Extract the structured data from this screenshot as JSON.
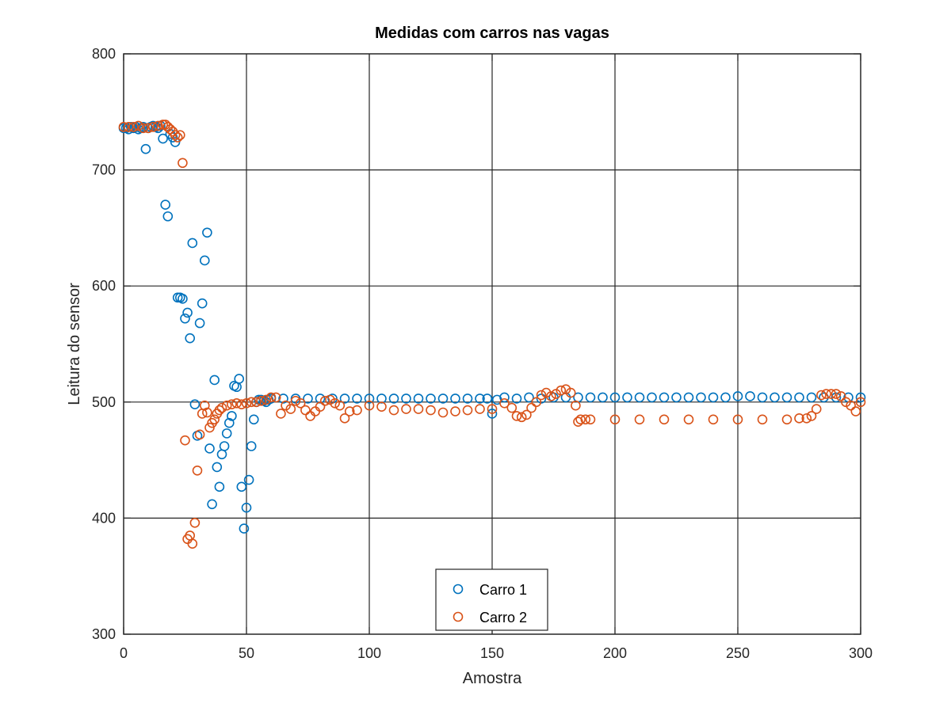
{
  "chart_data": {
    "type": "scatter",
    "title": "Medidas com carros nas vagas",
    "xlabel": "Amostra",
    "ylabel": "Leitura do sensor",
    "xlim": [
      0,
      300
    ],
    "ylim": [
      300,
      800
    ],
    "xticks": [
      0,
      50,
      100,
      150,
      200,
      250,
      300
    ],
    "yticks": [
      300,
      400,
      500,
      600,
      700,
      800
    ],
    "grid": true,
    "legend_position": "bottom-center",
    "marker": "open-circle",
    "series": [
      {
        "name": "Carro 1",
        "color": "#0072bd",
        "x": [
          0,
          1,
          2,
          3,
          4,
          5,
          6,
          7,
          8,
          9,
          10,
          11,
          12,
          13,
          14,
          15,
          16,
          17,
          18,
          19,
          20,
          21,
          22,
          23,
          24,
          25,
          26,
          27,
          28,
          29,
          30,
          31,
          32,
          33,
          34,
          35,
          36,
          37,
          38,
          39,
          40,
          41,
          42,
          43,
          44,
          45,
          46,
          47,
          48,
          49,
          50,
          51,
          52,
          53,
          54,
          55,
          56,
          57,
          58,
          59,
          60,
          65,
          70,
          75,
          80,
          85,
          90,
          95,
          100,
          105,
          110,
          115,
          120,
          125,
          130,
          135,
          140,
          145,
          148,
          150,
          152,
          155,
          160,
          165,
          170,
          175,
          180,
          185,
          190,
          195,
          200,
          205,
          210,
          215,
          220,
          225,
          230,
          235,
          240,
          245,
          250,
          255,
          260,
          265,
          270,
          275,
          280,
          285,
          290,
          295,
          300
        ],
        "y": [
          736,
          736,
          735,
          737,
          736,
          737,
          735,
          736,
          737,
          718,
          736,
          737,
          738,
          737,
          736,
          738,
          727,
          670,
          660,
          731,
          728,
          724,
          590,
          590,
          589,
          572,
          577,
          555,
          637,
          498,
          471,
          568,
          585,
          622,
          646,
          460,
          412,
          519,
          444,
          427,
          455,
          462,
          473,
          482,
          488,
          514,
          513,
          520,
          427,
          391,
          409,
          433,
          462,
          485,
          500,
          502,
          502,
          501,
          500,
          502,
          503,
          503,
          503,
          503,
          503,
          503,
          503,
          503,
          503,
          503,
          503,
          503,
          503,
          503,
          503,
          503,
          503,
          503,
          503,
          490,
          502,
          504,
          503,
          504,
          503,
          504,
          504,
          504,
          504,
          504,
          504,
          504,
          504,
          504,
          504,
          504,
          504,
          504,
          504,
          504,
          505,
          505,
          504,
          504,
          504,
          504,
          504,
          504,
          504,
          504,
          504
        ]
      },
      {
        "name": "Carro 2",
        "color": "#d95319",
        "x": [
          0,
          2,
          4,
          6,
          8,
          10,
          12,
          14,
          16,
          17,
          18,
          19,
          20,
          21,
          22,
          23,
          24,
          25,
          26,
          27,
          28,
          29,
          30,
          31,
          32,
          33,
          34,
          35,
          36,
          37,
          38,
          39,
          40,
          42,
          44,
          46,
          48,
          50,
          52,
          54,
          56,
          58,
          60,
          62,
          64,
          66,
          68,
          70,
          72,
          74,
          76,
          78,
          80,
          82,
          84,
          86,
          88,
          90,
          92,
          95,
          100,
          105,
          110,
          115,
          120,
          125,
          130,
          135,
          140,
          145,
          150,
          155,
          158,
          160,
          162,
          164,
          166,
          168,
          170,
          172,
          174,
          176,
          178,
          180,
          182,
          184,
          185,
          186,
          188,
          190,
          200,
          210,
          220,
          230,
          240,
          250,
          260,
          270,
          275,
          278,
          280,
          282,
          284,
          286,
          288,
          290,
          292,
          294,
          296,
          298,
          300
        ],
        "y": [
          737,
          737,
          737,
          738,
          736,
          736,
          737,
          738,
          739,
          739,
          737,
          735,
          733,
          730,
          728,
          730,
          706,
          467,
          382,
          385,
          378,
          396,
          441,
          472,
          490,
          497,
          491,
          478,
          482,
          485,
          490,
          493,
          495,
          497,
          498,
          499,
          498,
          499,
          500,
          500,
          501,
          502,
          504,
          504,
          490,
          497,
          494,
          501,
          499,
          493,
          488,
          492,
          496,
          501,
          502,
          499,
          497,
          486,
          492,
          493,
          497,
          496,
          493,
          494,
          494,
          493,
          491,
          492,
          493,
          494,
          494,
          499,
          495,
          488,
          487,
          489,
          495,
          500,
          506,
          508,
          505,
          507,
          510,
          511,
          508,
          497,
          483,
          485,
          485,
          485,
          485,
          485,
          485,
          485,
          485,
          485,
          485,
          485,
          486,
          486,
          488,
          494,
          506,
          507,
          507,
          507,
          505,
          500,
          497,
          492,
          500
        ]
      }
    ]
  }
}
